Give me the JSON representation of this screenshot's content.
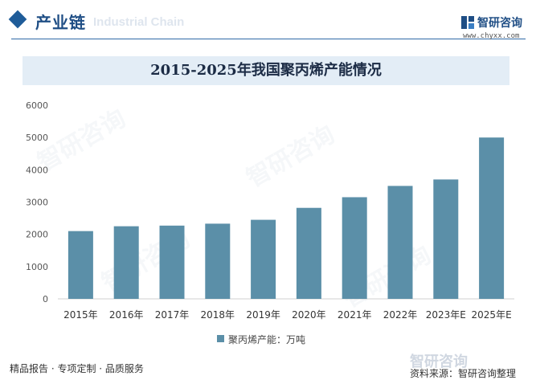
{
  "header": {
    "section_title": "产业链",
    "section_subtitle": "Industrial Chain",
    "logo_text": "智研咨询",
    "logo_url": "www.chyxx.com"
  },
  "colors": {
    "bar": "#5b8fa8",
    "accent": "#1f4e85",
    "title_bg": "#e3edf6"
  },
  "chart_data": {
    "type": "bar",
    "title": "2015-2025年我国聚丙烯产能情况",
    "categories": [
      "2015年",
      "2016年",
      "2017年",
      "2018年",
      "2019年",
      "2020年",
      "2021年",
      "2022年",
      "2023年E",
      "2025年E"
    ],
    "series": [
      {
        "name": "聚丙烯产能：万吨",
        "values": [
          2100,
          2250,
          2270,
          2330,
          2450,
          2820,
          3150,
          3500,
          3700,
          5000
        ]
      }
    ],
    "yticks": [
      "0",
      "1000",
      "2000",
      "3000",
      "4000",
      "5000",
      "6000"
    ],
    "ylim": [
      0,
      6000
    ],
    "xlabel": "",
    "ylabel": "",
    "grid": false,
    "legend_position": "bottom"
  },
  "footer": {
    "left": "精品报告 · 专项定制 · 品质服务",
    "right": "资料来源：智研咨询整理"
  }
}
